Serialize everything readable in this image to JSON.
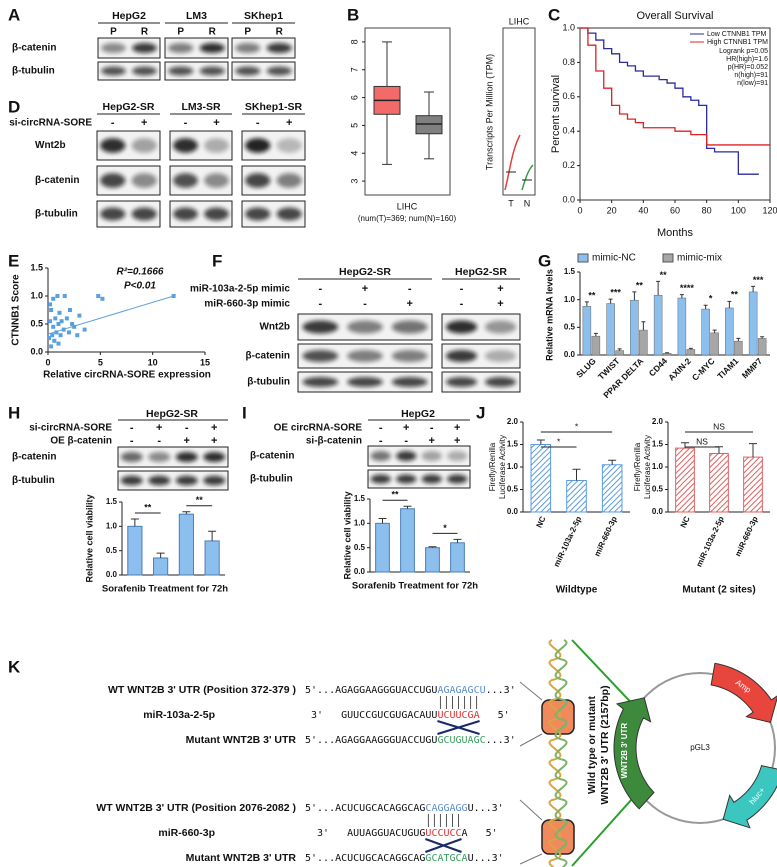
{
  "labels": [
    "A",
    "B",
    "C",
    "D",
    "E",
    "F",
    "G",
    "H",
    "I",
    "J",
    "K"
  ],
  "A": {
    "cell_lines": [
      "HepG2",
      "LM3",
      "SKhep1"
    ],
    "lanes": [
      "P",
      "R",
      "P",
      "R",
      "P",
      "R"
    ],
    "rows": [
      "β-catenin",
      "β-tubulin"
    ]
  },
  "B": {
    "chart_data": {
      "type": "box",
      "boxes": [
        {
          "color": "#f26b6b",
          "min": 3.6,
          "q1": 5.4,
          "median": 5.9,
          "q3": 6.4,
          "max": 8.0
        },
        {
          "color": "#808080",
          "min": 3.8,
          "q1": 4.7,
          "median": 5.05,
          "q3": 5.35,
          "max": 6.2
        }
      ],
      "ylim": [
        2.5,
        8.5
      ],
      "yticks": [
        3,
        4,
        5,
        6,
        7,
        8
      ],
      "xlabel": "LIHC",
      "note": "(num(T)=369; num(N)=160)"
    },
    "side": {
      "title": "LIHC",
      "ylabel": "Transcripts Per Million (TPM)",
      "categories": [
        "T",
        "N"
      ]
    }
  },
  "C": {
    "chart_data": {
      "type": "line",
      "title": "Overall Survival",
      "series": [
        {
          "name": "Low CTNNB1 TPM",
          "color": "#2b2b9e",
          "x": [
            0,
            5,
            10,
            15,
            20,
            25,
            30,
            35,
            40,
            45,
            50,
            55,
            60,
            65,
            70,
            75,
            80,
            85,
            90,
            100,
            113
          ],
          "y": [
            1,
            0.97,
            0.93,
            0.88,
            0.85,
            0.8,
            0.78,
            0.75,
            0.72,
            0.72,
            0.7,
            0.68,
            0.65,
            0.6,
            0.58,
            0.55,
            0.3,
            0.28,
            0.28,
            0.15,
            0.15
          ]
        },
        {
          "name": "High CTNNB1 TPM",
          "color": "#e02020",
          "x": [
            0,
            5,
            10,
            15,
            20,
            25,
            30,
            35,
            40,
            50,
            60,
            70,
            80,
            90,
            100,
            120
          ],
          "y": [
            1,
            0.9,
            0.75,
            0.65,
            0.55,
            0.5,
            0.47,
            0.45,
            0.42,
            0.42,
            0.4,
            0.38,
            0.32,
            0.32,
            0.32,
            0.32
          ]
        }
      ],
      "stats": [
        "Logrank p=0.05",
        "HR(high)=1.6",
        "p(HR)=0.052",
        "n(high)=91",
        "n(low)=91"
      ],
      "xlim": [
        0,
        120
      ],
      "xticks": [
        0,
        20,
        40,
        60,
        80,
        100,
        120
      ],
      "ylim": [
        0,
        1.0
      ],
      "yticks": [
        {
          "value": 0,
          "label": "0.0"
        },
        {
          "value": 0.2,
          "label": "0.2"
        },
        {
          "value": 0.4,
          "label": "0.4"
        },
        {
          "value": 0.6,
          "label": "0.6"
        },
        {
          "value": 0.8,
          "label": "0.8"
        },
        {
          "value": 1.0,
          "label": "1.0"
        }
      ],
      "xlabel": "Months",
      "ylabel": "Percent survival"
    }
  },
  "D": {
    "cell_lines": [
      "HepG2-SR",
      "LM3-SR",
      "SKhep1-SR"
    ],
    "treatment": "si-circRNA-SORE",
    "signs": [
      "-",
      "+",
      "-",
      "+",
      "-",
      "+"
    ],
    "rows": [
      "Wnt2b",
      "β-catenin",
      "β-tubulin"
    ]
  },
  "E": {
    "chart_data": {
      "type": "scatter",
      "x": [
        0.1,
        0.2,
        0.3,
        0.3,
        0.4,
        0.5,
        0.5,
        0.6,
        0.7,
        0.8,
        0.9,
        1.0,
        1.0,
        1.1,
        1.2,
        1.3,
        1.5,
        1.6,
        1.8,
        2.0,
        2.1,
        2.3,
        2.5,
        2.8,
        3.0,
        3.5,
        4.8,
        5.2,
        12.0,
        0.2
      ],
      "y": [
        0.25,
        0.55,
        0.1,
        0.75,
        0.3,
        0.45,
        0.95,
        0.2,
        0.6,
        0.35,
        1.0,
        0.5,
        0.15,
        0.7,
        0.3,
        0.55,
        0.4,
        1.0,
        0.6,
        0.35,
        0.75,
        0.5,
        0.45,
        0.3,
        0.65,
        0.4,
        1.0,
        0.95,
        1.0,
        0.85
      ],
      "trend": {
        "x": [
          0,
          12
        ],
        "y": [
          0.32,
          1.0
        ]
      },
      "color": "#5aa0e0",
      "r2": "R²=0.1666",
      "p": "P<0.01",
      "xlim": [
        0,
        15
      ],
      "xticks": [
        0,
        5,
        10,
        15
      ],
      "ylim": [
        0,
        1.5
      ],
      "yticks": [
        {
          "value": 0,
          "label": "0.0"
        },
        {
          "value": 0.5,
          "label": "0.5"
        },
        {
          "value": 1.0,
          "label": "1.0"
        },
        {
          "value": 1.5,
          "label": "1.5"
        }
      ],
      "xlabel": "Relative circRNA-SORE expression",
      "ylabel": "CTNNB1 Score"
    }
  },
  "F": {
    "headers": [
      "HepG2-SR",
      "HepG2-SR"
    ],
    "treatments": [
      {
        "name": "miR-103a-2-5p mimic",
        "signs": [
          "-",
          "+",
          "-",
          "-",
          "+"
        ]
      },
      {
        "name": "miR-660-3p mimic",
        "signs": [
          "-",
          "-",
          "+",
          "-",
          "+"
        ]
      }
    ],
    "rows": [
      "Wnt2b",
      "β-catenin",
      "β-tubulin"
    ]
  },
  "G": {
    "chart_data": {
      "type": "bar",
      "categories": [
        "SLUG",
        "TWIST",
        "PPAR DELTA",
        "CD44",
        "AXIN-2",
        "C-MYC",
        "TIAM1",
        "MMP7"
      ],
      "series": [
        {
          "name": "mimic-NC",
          "color": "#8dbfee",
          "values": [
            0.88,
            0.93,
            0.99,
            1.08,
            1.03,
            0.83,
            0.85,
            1.14
          ],
          "errors": [
            0.08,
            0.08,
            0.15,
            0.25,
            0.06,
            0.07,
            0.12,
            0.1
          ]
        },
        {
          "name": "mimic-mix",
          "color": "#a6a6a6",
          "values": [
            0.34,
            0.08,
            0.45,
            0.03,
            0.1,
            0.4,
            0.25,
            0.3
          ],
          "errors": [
            0.05,
            0.03,
            0.15,
            0.01,
            0.02,
            0.05,
            0.05,
            0.03
          ]
        }
      ],
      "significance": [
        "**",
        "***",
        "**",
        "**",
        "****",
        "*",
        "**",
        "***"
      ],
      "ylim": [
        0,
        1.5
      ],
      "yticks": [
        {
          "value": 0,
          "label": "0.0"
        },
        {
          "value": 0.5,
          "label": "0.5"
        },
        {
          "value": 1.0,
          "label": "1.0"
        },
        {
          "value": 1.5,
          "label": "1.5"
        }
      ],
      "ylabel": "Relative mRNA levels"
    }
  },
  "H": {
    "header": "HepG2-SR",
    "treatments": [
      {
        "name": "si-circRNA-SORE",
        "signs": [
          "-",
          "+",
          "-",
          "+"
        ]
      },
      {
        "name": "OE β-catenin",
        "signs": [
          "-",
          "-",
          "+",
          "+"
        ]
      }
    ],
    "rows": [
      "β-catenin",
      "β-tubulin"
    ],
    "chart_data": {
      "type": "bar",
      "values": [
        1.0,
        0.35,
        1.25,
        0.7
      ],
      "errors": [
        0.15,
        0.1,
        0.05,
        0.2
      ],
      "color": "#8dbfee",
      "ylim": [
        0,
        1.5
      ],
      "yticks": [
        {
          "value": 0,
          "label": "0.0"
        },
        {
          "value": 0.5,
          "label": "0.5"
        },
        {
          "value": 1.0,
          "label": "1.0"
        },
        {
          "value": 1.5,
          "label": "1.5"
        }
      ],
      "ylabel": "Relative cell viability",
      "xlabel": "Sorafenib Treatment for 72h",
      "significance": [
        "**",
        "**"
      ]
    }
  },
  "I": {
    "header": "HepG2",
    "treatments": [
      {
        "name": "OE circRNA-SORE",
        "signs": [
          "-",
          "+",
          "-",
          "+"
        ]
      },
      {
        "name": "si-β-catenin",
        "signs": [
          "-",
          "-",
          "+",
          "+"
        ]
      }
    ],
    "rows": [
      "β-catenin",
      "β-tubulin"
    ],
    "chart_data": {
      "type": "bar",
      "values": [
        1.0,
        1.3,
        0.5,
        0.6
      ],
      "errors": [
        0.1,
        0.05,
        0.02,
        0.07
      ],
      "color": "#8dbfee",
      "ylim": [
        0,
        1.5
      ],
      "yticks": [
        {
          "value": 0,
          "label": "0.0"
        },
        {
          "value": 0.5,
          "label": "0.5"
        },
        {
          "value": 1.0,
          "label": "1.0"
        },
        {
          "value": 1.5,
          "label": "1.5"
        }
      ],
      "ylabel": "Relative cell viability",
      "xlabel": "Sorafenib Treatment for 72h",
      "significance": [
        "**",
        "*"
      ]
    }
  },
  "J": {
    "charts": [
      {
        "type": "bar",
        "categories": [
          "NC",
          "miR-103a-2-5p",
          "miR-660-3p"
        ],
        "values": [
          1.5,
          0.7,
          1.05
        ],
        "errors": [
          0.1,
          0.25,
          0.1
        ],
        "color": "#5b9be0",
        "ylim": [
          0,
          2.0
        ],
        "yticks": [
          {
            "value": 0,
            "label": "0.0"
          },
          {
            "value": 0.5,
            "label": "0.5"
          },
          {
            "value": 1.0,
            "label": "1.0"
          },
          {
            "value": 1.5,
            "label": "1.5"
          },
          {
            "value": 2.0,
            "label": "2.0"
          }
        ],
        "ylabel": [
          "Firefly/Renilla",
          "Luciferase Activity"
        ],
        "xlabel": "Wildtype",
        "significance": [
          "*",
          "*"
        ]
      },
      {
        "type": "bar",
        "categories": [
          "NC",
          "miR-103a-2-5p",
          "miR-660-3p"
        ],
        "values": [
          1.42,
          1.3,
          1.22
        ],
        "errors": [
          0.12,
          0.15,
          0.3
        ],
        "color": "#e06060",
        "ylim": [
          0,
          2.0
        ],
        "yticks": [
          {
            "value": 0,
            "label": "0.0"
          },
          {
            "value": 0.5,
            "label": "0.5"
          },
          {
            "value": 1.0,
            "label": "1.0"
          },
          {
            "value": 1.5,
            "label": "1.5"
          },
          {
            "value": 2.0,
            "label": "2.0"
          }
        ],
        "ylabel": [
          "Firefly/Renilla",
          "Luciferase Activity"
        ],
        "xlabel": "Mutant (2 sites)",
        "significance": [
          "NS",
          "NS"
        ]
      }
    ]
  },
  "K": {
    "sites": [
      {
        "wt_label": "WT WNT2B 3ʹ UTR (Position 372-379 )",
        "wt_seq": [
          "5'...AGAGGAAGGGUACCUGU",
          "AGAGAGCU",
          "...3'"
        ],
        "mir_label": "miR-103a-2-5p",
        "mir_seq": [
          "3'",
          "GUUCCGUCGUGACAUU",
          "UCUUCGA",
          "5'"
        ],
        "mut_label": "Mutant WNT2B 3ʹ UTR",
        "mut_seq": [
          "5'...AGAGGAAGGGUACCUGU",
          "GCUGUAGC",
          "...3'"
        ]
      },
      {
        "wt_label": "WT WNT2B 3ʹ UTR (Position 2076-2082 )",
        "wt_seq": [
          "5'...ACUCUGCACAGGCAG",
          "CAGGAGG",
          "U...3'"
        ],
        "mir_label": "miR-660-3p",
        "mir_seq": [
          "3'",
          "AUUAGGUACUGUG",
          "UCCUCC",
          "A",
          "5'"
        ],
        "mut_label": "Mutant WNT2B 3ʹ UTR",
        "mut_seq": [
          "5'...ACUCUGCACAGGCAG",
          "GCATGCA",
          "U...3'"
        ]
      }
    ],
    "insert_label": [
      "Wild type or mutant",
      "WNT2B 3ʹ UTR (2157bp)"
    ],
    "plasmid": "pGL3",
    "genes": [
      "Amp",
      "hluc+",
      "WNT2B 3ʹ UTR"
    ]
  }
}
